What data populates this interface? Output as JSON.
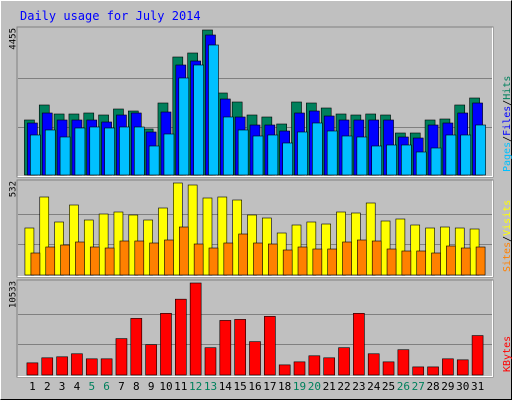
{
  "chart_data": [
    {
      "type": "bar",
      "title": "Daily usage for July 2014",
      "max_label": "4455",
      "ylim": [
        0,
        145
      ],
      "series": [
        {
          "name": "Hits",
          "color": "#00805c",
          "values": [
            55,
            70,
            61,
            61,
            62,
            60,
            66,
            64,
            46,
            72,
            118,
            122,
            145,
            82,
            73,
            60,
            58,
            51,
            73,
            72,
            67,
            61,
            60,
            61,
            60,
            42,
            42,
            55,
            56,
            70,
            77
          ]
        },
        {
          "name": "Files",
          "color": "#0000ff",
          "values": [
            52,
            62,
            55,
            55,
            55,
            53,
            60,
            62,
            43,
            63,
            110,
            114,
            140,
            76,
            58,
            50,
            50,
            44,
            62,
            64,
            59,
            55,
            55,
            55,
            55,
            38,
            37,
            50,
            52,
            62,
            72
          ]
        },
        {
          "name": "Pages",
          "color": "#00c0ff",
          "values": [
            40,
            45,
            38,
            47,
            48,
            47,
            48,
            48,
            29,
            41,
            97,
            110,
            130,
            58,
            45,
            39,
            40,
            32,
            43,
            52,
            44,
            39,
            38,
            29,
            30,
            30,
            23,
            27,
            40,
            40,
            50
          ]
        }
      ],
      "legend_separator": "/"
    },
    {
      "type": "bar",
      "max_label": "532",
      "ylim": [
        0,
        92
      ],
      "series": [
        {
          "name": "Visits",
          "color": "#ffff00",
          "values": [
            47,
            78,
            53,
            70,
            55,
            61,
            63,
            60,
            55,
            67,
            92,
            90,
            77,
            78,
            75,
            60,
            57,
            42,
            50,
            53,
            51,
            63,
            62,
            72,
            54,
            56,
            50,
            47,
            48,
            47,
            46
          ]
        },
        {
          "name": "Sites",
          "color": "#ff8000",
          "values": [
            22,
            28,
            30,
            33,
            28,
            27,
            34,
            34,
            32,
            35,
            48,
            31,
            27,
            32,
            41,
            32,
            31,
            25,
            28,
            26,
            26,
            33,
            35,
            34,
            26,
            24,
            24,
            22,
            29,
            27,
            28
          ]
        }
      ],
      "legend_separator": "/"
    },
    {
      "type": "bar",
      "max_label": "10533",
      "ylim": [
        0,
        91
      ],
      "series": [
        {
          "name": "KBytes",
          "color": "#ff0000",
          "values": [
            12,
            17,
            18,
            21,
            16,
            16,
            36,
            56,
            30,
            61,
            75,
            91,
            27,
            54,
            55,
            33,
            58,
            10,
            13,
            19,
            17,
            27,
            61,
            21,
            13,
            25,
            8,
            8,
            16,
            15,
            39
          ]
        }
      ],
      "categories": [
        "1",
        "2",
        "3",
        "4",
        "5",
        "6",
        "7",
        "8",
        "9",
        "10",
        "11",
        "12",
        "13",
        "14",
        "15",
        "16",
        "17",
        "18",
        "19",
        "20",
        "21",
        "22",
        "23",
        "24",
        "25",
        "26",
        "27",
        "28",
        "29",
        "30",
        "31"
      ],
      "category_colors": [
        "#000000",
        "#000000",
        "#000000",
        "#000000",
        "#00805c",
        "#00805c",
        "#000000",
        "#000000",
        "#000000",
        "#000000",
        "#000000",
        "#00805c",
        "#00805c",
        "#000000",
        "#000000",
        "#000000",
        "#000000",
        "#000000",
        "#00805c",
        "#00805c",
        "#000000",
        "#000000",
        "#000000",
        "#000000",
        "#000000",
        "#00805c",
        "#00805c",
        "#000000",
        "#000000",
        "#000000",
        "#000000"
      ]
    }
  ]
}
